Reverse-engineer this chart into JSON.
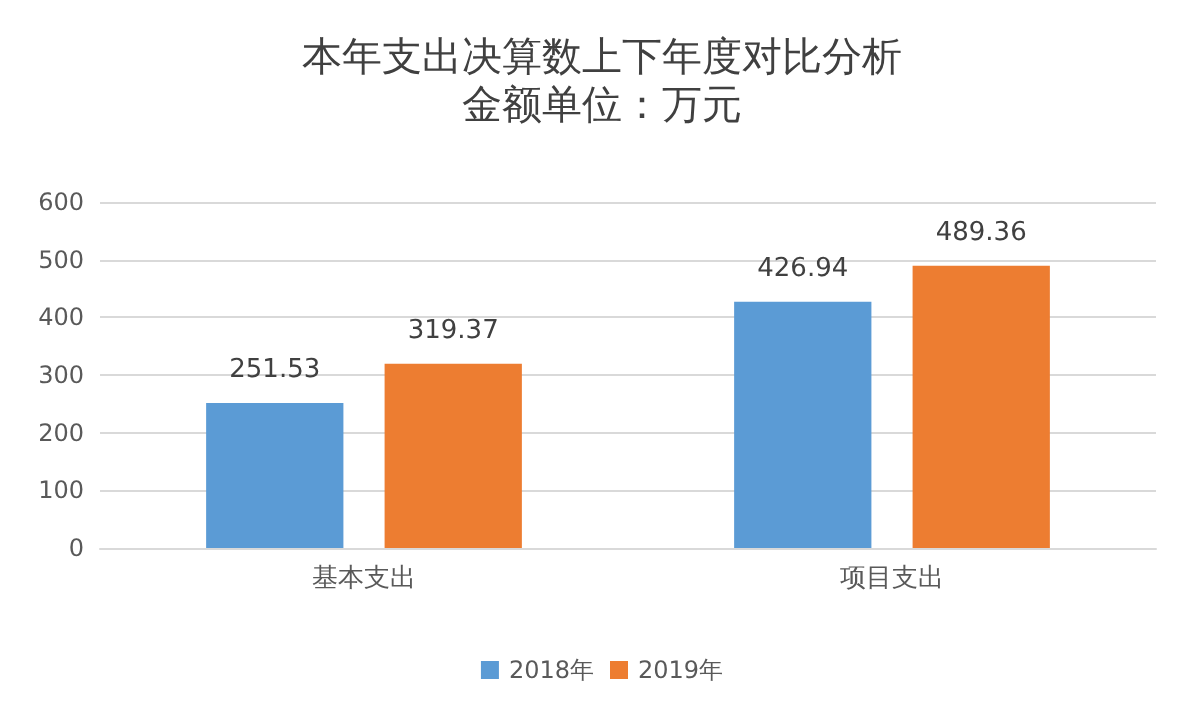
{
  "chart_data": {
    "type": "bar",
    "title": "本年支出决算数上下年度对比分析",
    "subtitle": "金额单位：万元",
    "categories": [
      "基本支出",
      "项目支出"
    ],
    "series": [
      {
        "name": "2018年",
        "color": "#5b9bd5",
        "values": [
          251.53,
          426.94
        ]
      },
      {
        "name": "2019年",
        "color": "#ed7d31",
        "values": [
          319.37,
          489.36
        ]
      }
    ],
    "ylim": [
      0,
      600
    ],
    "yticks": [
      0,
      100,
      200,
      300,
      400,
      500,
      600
    ],
    "grid": "y",
    "legend": "bottom",
    "data_labels": true
  }
}
